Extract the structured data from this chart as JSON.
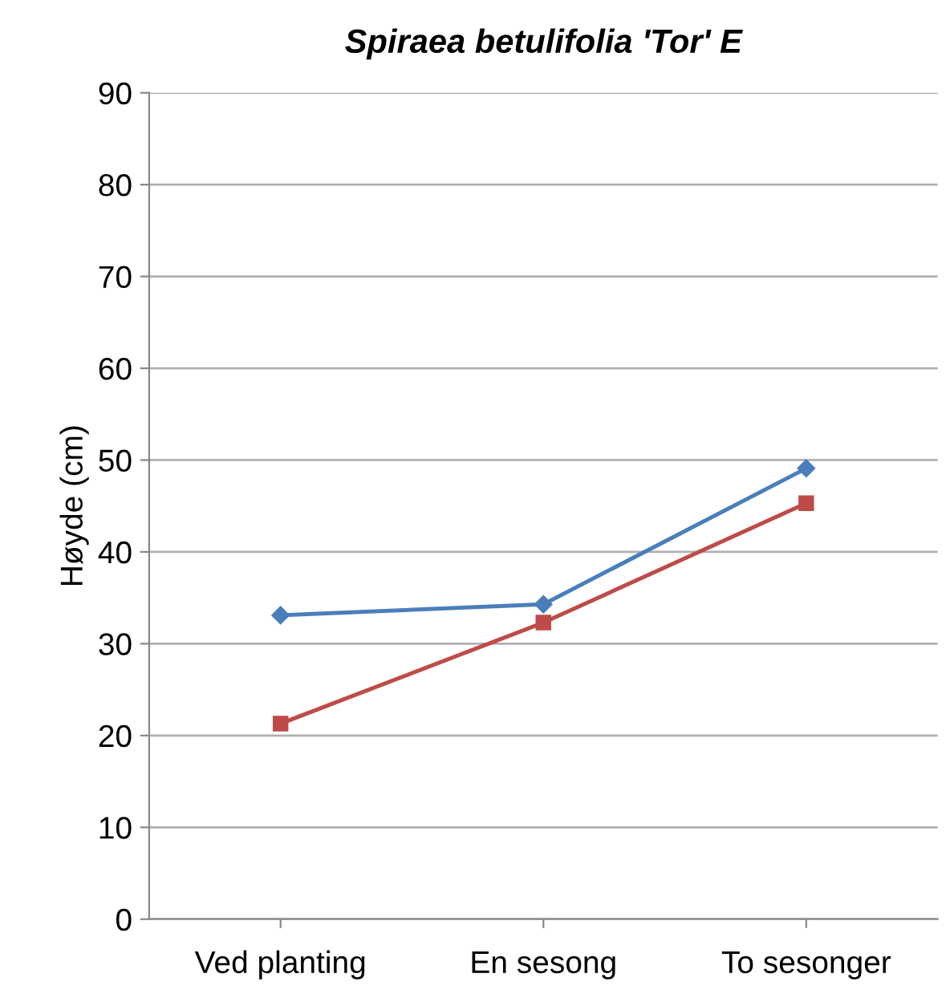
{
  "chart_data": {
    "type": "line",
    "title": "Spiraea betulifolia 'Tor' E",
    "ylabel": "Høyde (cm)",
    "categories": [
      "Ved planting",
      "En sesong",
      "To sesonger"
    ],
    "series": [
      {
        "color": "#4a7ebb",
        "marker": "diamond",
        "values": [
          33.1,
          34.3,
          49.1
        ]
      },
      {
        "color": "#be4b48",
        "marker": "square",
        "values": [
          21.3,
          32.3,
          45.3
        ]
      }
    ],
    "ylim": [
      0,
      90
    ],
    "yticks": [
      0,
      10,
      20,
      30,
      40,
      50,
      60,
      70,
      80,
      90
    ],
    "grid": "y",
    "legend": false
  }
}
